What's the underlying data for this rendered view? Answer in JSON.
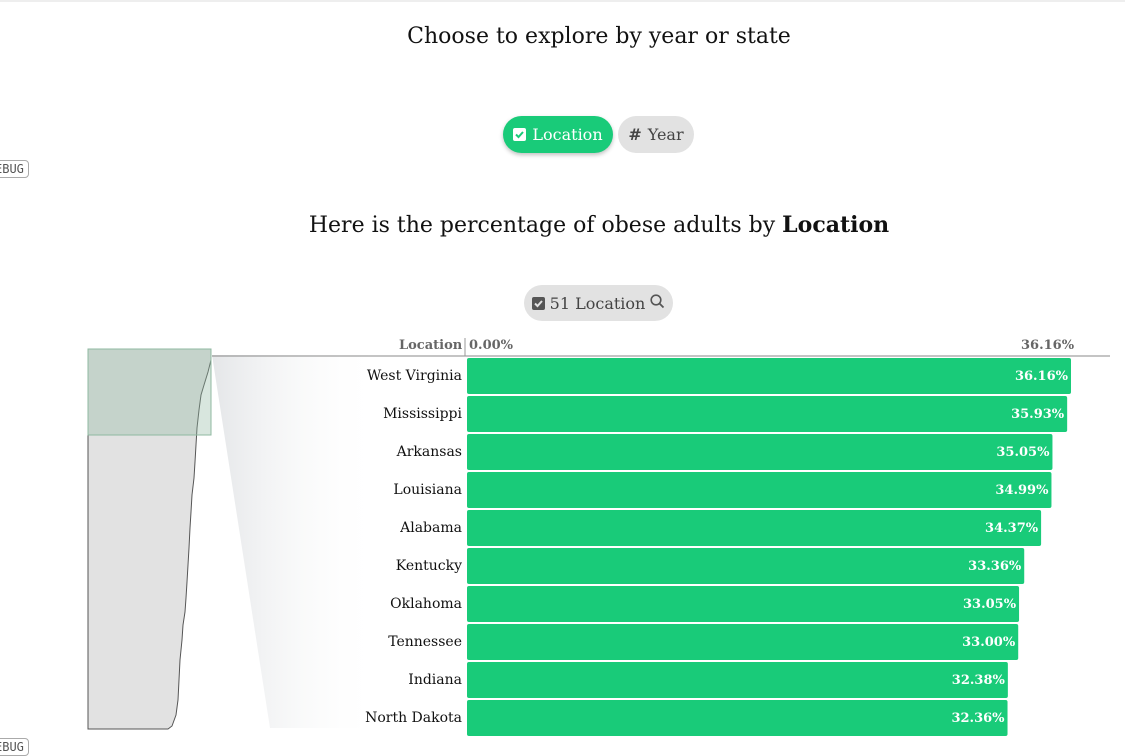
{
  "explore_heading": "Choose to explore by year or state",
  "debug_label": "EBUG",
  "toggles": {
    "location_label": "Location",
    "year_label": "Year",
    "location_icon": "checkbox-checked-icon",
    "year_icon": "hash-icon"
  },
  "chart_heading_prefix": "Here is the percentage of obese adults by ",
  "chart_heading_bold": "Location",
  "filter": {
    "label": "51 Location",
    "checkbox_icon": "checkbox-checked-icon",
    "search_icon": "search-icon"
  },
  "colors": {
    "bar": "#19cb79",
    "accent": "#19cb79",
    "minimap_fill": "#e2e2e2"
  },
  "chart_data": {
    "type": "bar",
    "orientation": "horizontal",
    "category_header": "Location",
    "axis_min_label": "0.00%",
    "axis_max_label": "36.16%",
    "xlim": [
      0,
      36.16
    ],
    "categories": [
      "West Virginia",
      "Mississippi",
      "Arkansas",
      "Louisiana",
      "Alabama",
      "Kentucky",
      "Oklahoma",
      "Tennessee",
      "Indiana",
      "North Dakota"
    ],
    "values": [
      36.16,
      35.93,
      35.05,
      34.99,
      34.37,
      33.36,
      33.05,
      33.0,
      32.38,
      32.36
    ],
    "value_labels": [
      "36.16%",
      "35.93%",
      "35.05%",
      "34.99%",
      "34.37%",
      "33.36%",
      "33.05%",
      "33.00%",
      "32.38%",
      "32.36%"
    ],
    "total_locations": 51
  }
}
